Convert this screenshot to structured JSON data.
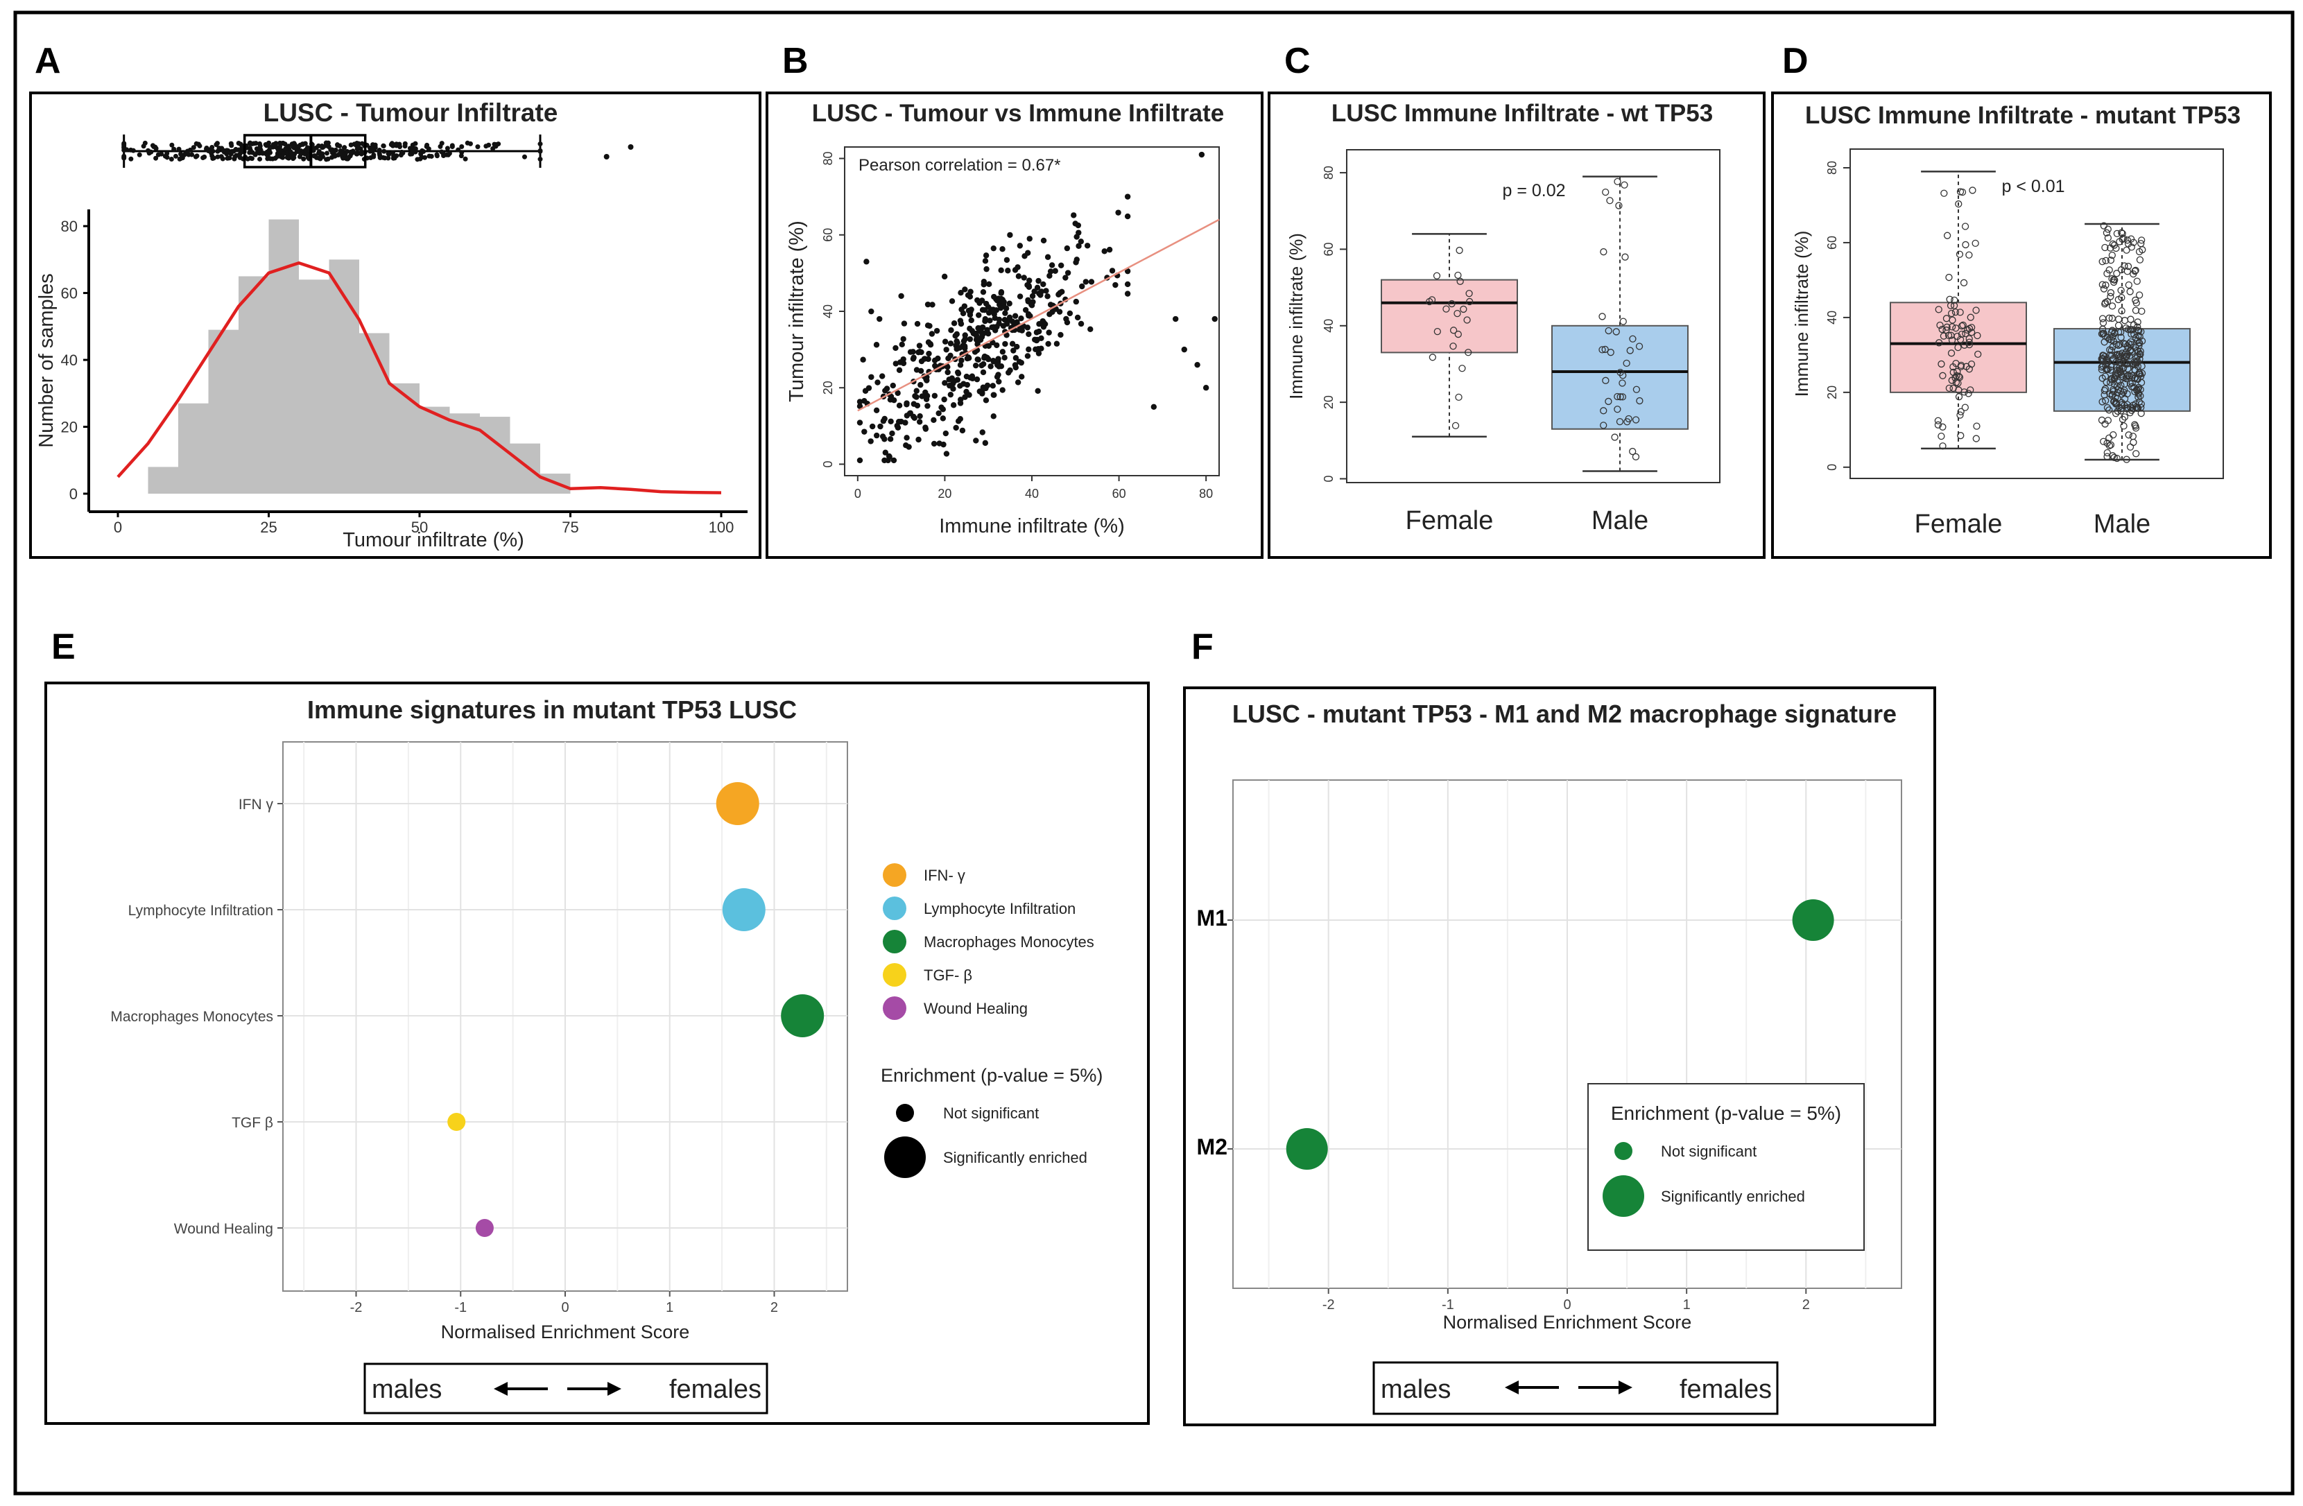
{
  "colors": {
    "hist_bar": "#c0c0c0",
    "density": "#e02020",
    "female_box": "#f6c6c9",
    "male_box": "#a9cdec",
    "ifn": "#f5a623",
    "lymph": "#5bc0de",
    "macro": "#168438",
    "tgf": "#f7d21b",
    "wound": "#a54ba6",
    "regression": "#e89080"
  },
  "panels": {
    "A": {
      "letter": "A",
      "title": "LUSC - Tumour Infiltrate"
    },
    "B": {
      "letter": "B",
      "title": "LUSC - Tumour vs Immune Infiltrate",
      "annotation": "Pearson correlation = 0.67*"
    },
    "C": {
      "letter": "C",
      "title": "LUSC Immune Infiltrate - wt TP53",
      "pvalue": "p = 0.02"
    },
    "D": {
      "letter": "D",
      "title": "LUSC Immune Infiltrate - mutant TP53",
      "pvalue": "p < 0.01"
    },
    "E": {
      "letter": "E",
      "title": "Immune signatures in mutant TP53 LUSC",
      "legend_enrich_title": "Enrichment (p-value = 5%)",
      "legend_not_sig": "Not significant",
      "legend_sig": "Significantly enriched",
      "males": "males",
      "females": "females"
    },
    "F": {
      "letter": "F",
      "title": "LUSC - mutant TP53 - M1 and M2 macrophage signature",
      "legend_enrich_title": "Enrichment (p-value = 5%)",
      "legend_not_sig": "Not significant",
      "legend_sig": "Significantly enriched",
      "males": "males",
      "females": "females"
    }
  },
  "chart_data": [
    {
      "id": "A",
      "type": "bar",
      "title": "LUSC - Tumour Infiltrate",
      "xlabel": "Tumour infiltrate (%)",
      "ylabel": "Number of samples",
      "xlim": [
        0,
        100
      ],
      "ylim": [
        0,
        85
      ],
      "xticks": [
        0,
        25,
        50,
        75,
        100
      ],
      "yticks": [
        0,
        20,
        40,
        60,
        80
      ],
      "bin_width": 5,
      "bins": [
        [
          5,
          10,
          8
        ],
        [
          10,
          15,
          27
        ],
        [
          15,
          20,
          49
        ],
        [
          20,
          25,
          65
        ],
        [
          25,
          30,
          82
        ],
        [
          30,
          35,
          64
        ],
        [
          35,
          40,
          70
        ],
        [
          40,
          45,
          48
        ],
        [
          45,
          50,
          33
        ],
        [
          50,
          55,
          26
        ],
        [
          55,
          60,
          24
        ],
        [
          60,
          65,
          23
        ],
        [
          65,
          70,
          15
        ],
        [
          70,
          75,
          6
        ]
      ],
      "density": [
        [
          0,
          5
        ],
        [
          5,
          15
        ],
        [
          10,
          28
        ],
        [
          15,
          42
        ],
        [
          20,
          56
        ],
        [
          25,
          66
        ],
        [
          30,
          69
        ],
        [
          35,
          66
        ],
        [
          40,
          52
        ],
        [
          45,
          33
        ],
        [
          50,
          26
        ],
        [
          55,
          22
        ],
        [
          60,
          19
        ],
        [
          65,
          12
        ],
        [
          70,
          5
        ],
        [
          75,
          1.5
        ],
        [
          80,
          1.8
        ],
        [
          85,
          1.3
        ],
        [
          90,
          0.6
        ],
        [
          95,
          0.4
        ],
        [
          100,
          0.3
        ]
      ],
      "boxplot": {
        "whisker_low": 1,
        "q1": 21,
        "median": 32,
        "q3": 41,
        "whisker_high": 70,
        "outliers": [
          81,
          85
        ]
      }
    },
    {
      "id": "B",
      "type": "scatter",
      "title": "LUSC - Tumour vs Immune Infiltrate",
      "xlabel": "Immune infiltrate (%)",
      "ylabel": "Tumour infiltrate (%)",
      "xlim": [
        -3,
        83
      ],
      "ylim": [
        -3,
        83
      ],
      "xticks": [
        0,
        20,
        40,
        60,
        80
      ],
      "yticks": [
        0,
        20,
        40,
        60,
        80
      ],
      "regression": {
        "x0": 0,
        "y0": 14,
        "x1": 83,
        "y1": 64
      },
      "n_points": 480,
      "extra_points": [
        [
          79,
          81
        ],
        [
          73,
          38
        ],
        [
          75,
          30
        ],
        [
          78,
          26
        ],
        [
          80,
          20
        ],
        [
          82,
          38
        ],
        [
          68,
          15
        ],
        [
          2,
          53
        ],
        [
          10,
          44
        ],
        [
          5,
          38
        ],
        [
          3,
          6
        ]
      ]
    },
    {
      "id": "C",
      "type": "box",
      "title": "LUSC Immune Infiltrate - wt TP53",
      "ylabel": "Immune infiltrate (%)",
      "categories": [
        "Female",
        "Male"
      ],
      "ylim": [
        -1,
        86
      ],
      "yticks": [
        0,
        20,
        40,
        60,
        80
      ],
      "boxes": [
        {
          "name": "Female",
          "whisker_low": 11,
          "q1": 33,
          "median": 46,
          "q3": 52,
          "whisker_high": 64,
          "n_points": 22
        },
        {
          "name": "Male",
          "whisker_low": 2,
          "q1": 13,
          "median": 28,
          "q3": 40,
          "whisker_high": 79,
          "n_points": 38
        }
      ],
      "annotation": "p = 0.02"
    },
    {
      "id": "D",
      "type": "box",
      "title": "LUSC Immune Infiltrate - mutant TP53",
      "ylabel": "Immune infiltrate (%)",
      "categories": [
        "Female",
        "Male"
      ],
      "ylim": [
        -3,
        85
      ],
      "yticks": [
        0,
        20,
        40,
        60,
        80
      ],
      "boxes": [
        {
          "name": "Female",
          "whisker_low": 5,
          "q1": 20,
          "median": 33,
          "q3": 44,
          "whisker_high": 79,
          "n_points": 90
        },
        {
          "name": "Male",
          "whisker_low": 2,
          "q1": 15,
          "median": 28,
          "q3": 37,
          "whisker_high": 65,
          "n_points": 330
        }
      ],
      "annotation": "p < 0.01"
    },
    {
      "id": "E",
      "type": "scatter",
      "title": "Immune signatures in mutant TP53 LUSC",
      "xlabel": "Normalised Enrichment Score",
      "xlim": [
        -2.7,
        2.7
      ],
      "xticks": [
        -2,
        -1,
        0,
        1,
        2
      ],
      "categories": [
        "IFN γ",
        "Lymphocyte Infiltration",
        "Macrophages Monocytes",
        "TGF β",
        "Wound Healing"
      ],
      "points": [
        {
          "label": "IFN γ",
          "x": 1.65,
          "significant": true,
          "color": "#f5a623"
        },
        {
          "label": "Lymphocyte Infiltration",
          "x": 1.71,
          "significant": true,
          "color": "#5bc0de"
        },
        {
          "label": "Macrophages Monocytes",
          "x": 2.27,
          "significant": true,
          "color": "#168438"
        },
        {
          "label": "TGF β",
          "x": -1.04,
          "significant": false,
          "color": "#f7d21b"
        },
        {
          "label": "Wound Healing",
          "x": -0.77,
          "significant": false,
          "color": "#a54ba6"
        }
      ],
      "legend": [
        "IFN- γ",
        "Lymphocyte Infiltration",
        "Macrophages Monocytes",
        "TGF- β",
        "Wound Healing"
      ]
    },
    {
      "id": "F",
      "type": "scatter",
      "title": "LUSC - mutant TP53 - M1 and M2 macrophage signature",
      "xlabel": "Normalised Enrichment Score",
      "xlim": [
        -2.8,
        2.8
      ],
      "xticks": [
        -2,
        -1,
        0,
        1,
        2
      ],
      "categories": [
        "M1",
        "M2"
      ],
      "points": [
        {
          "label": "M1",
          "x": 2.06,
          "significant": true,
          "color": "#168438"
        },
        {
          "label": "M2",
          "x": -2.18,
          "significant": true,
          "color": "#168438"
        }
      ]
    }
  ]
}
